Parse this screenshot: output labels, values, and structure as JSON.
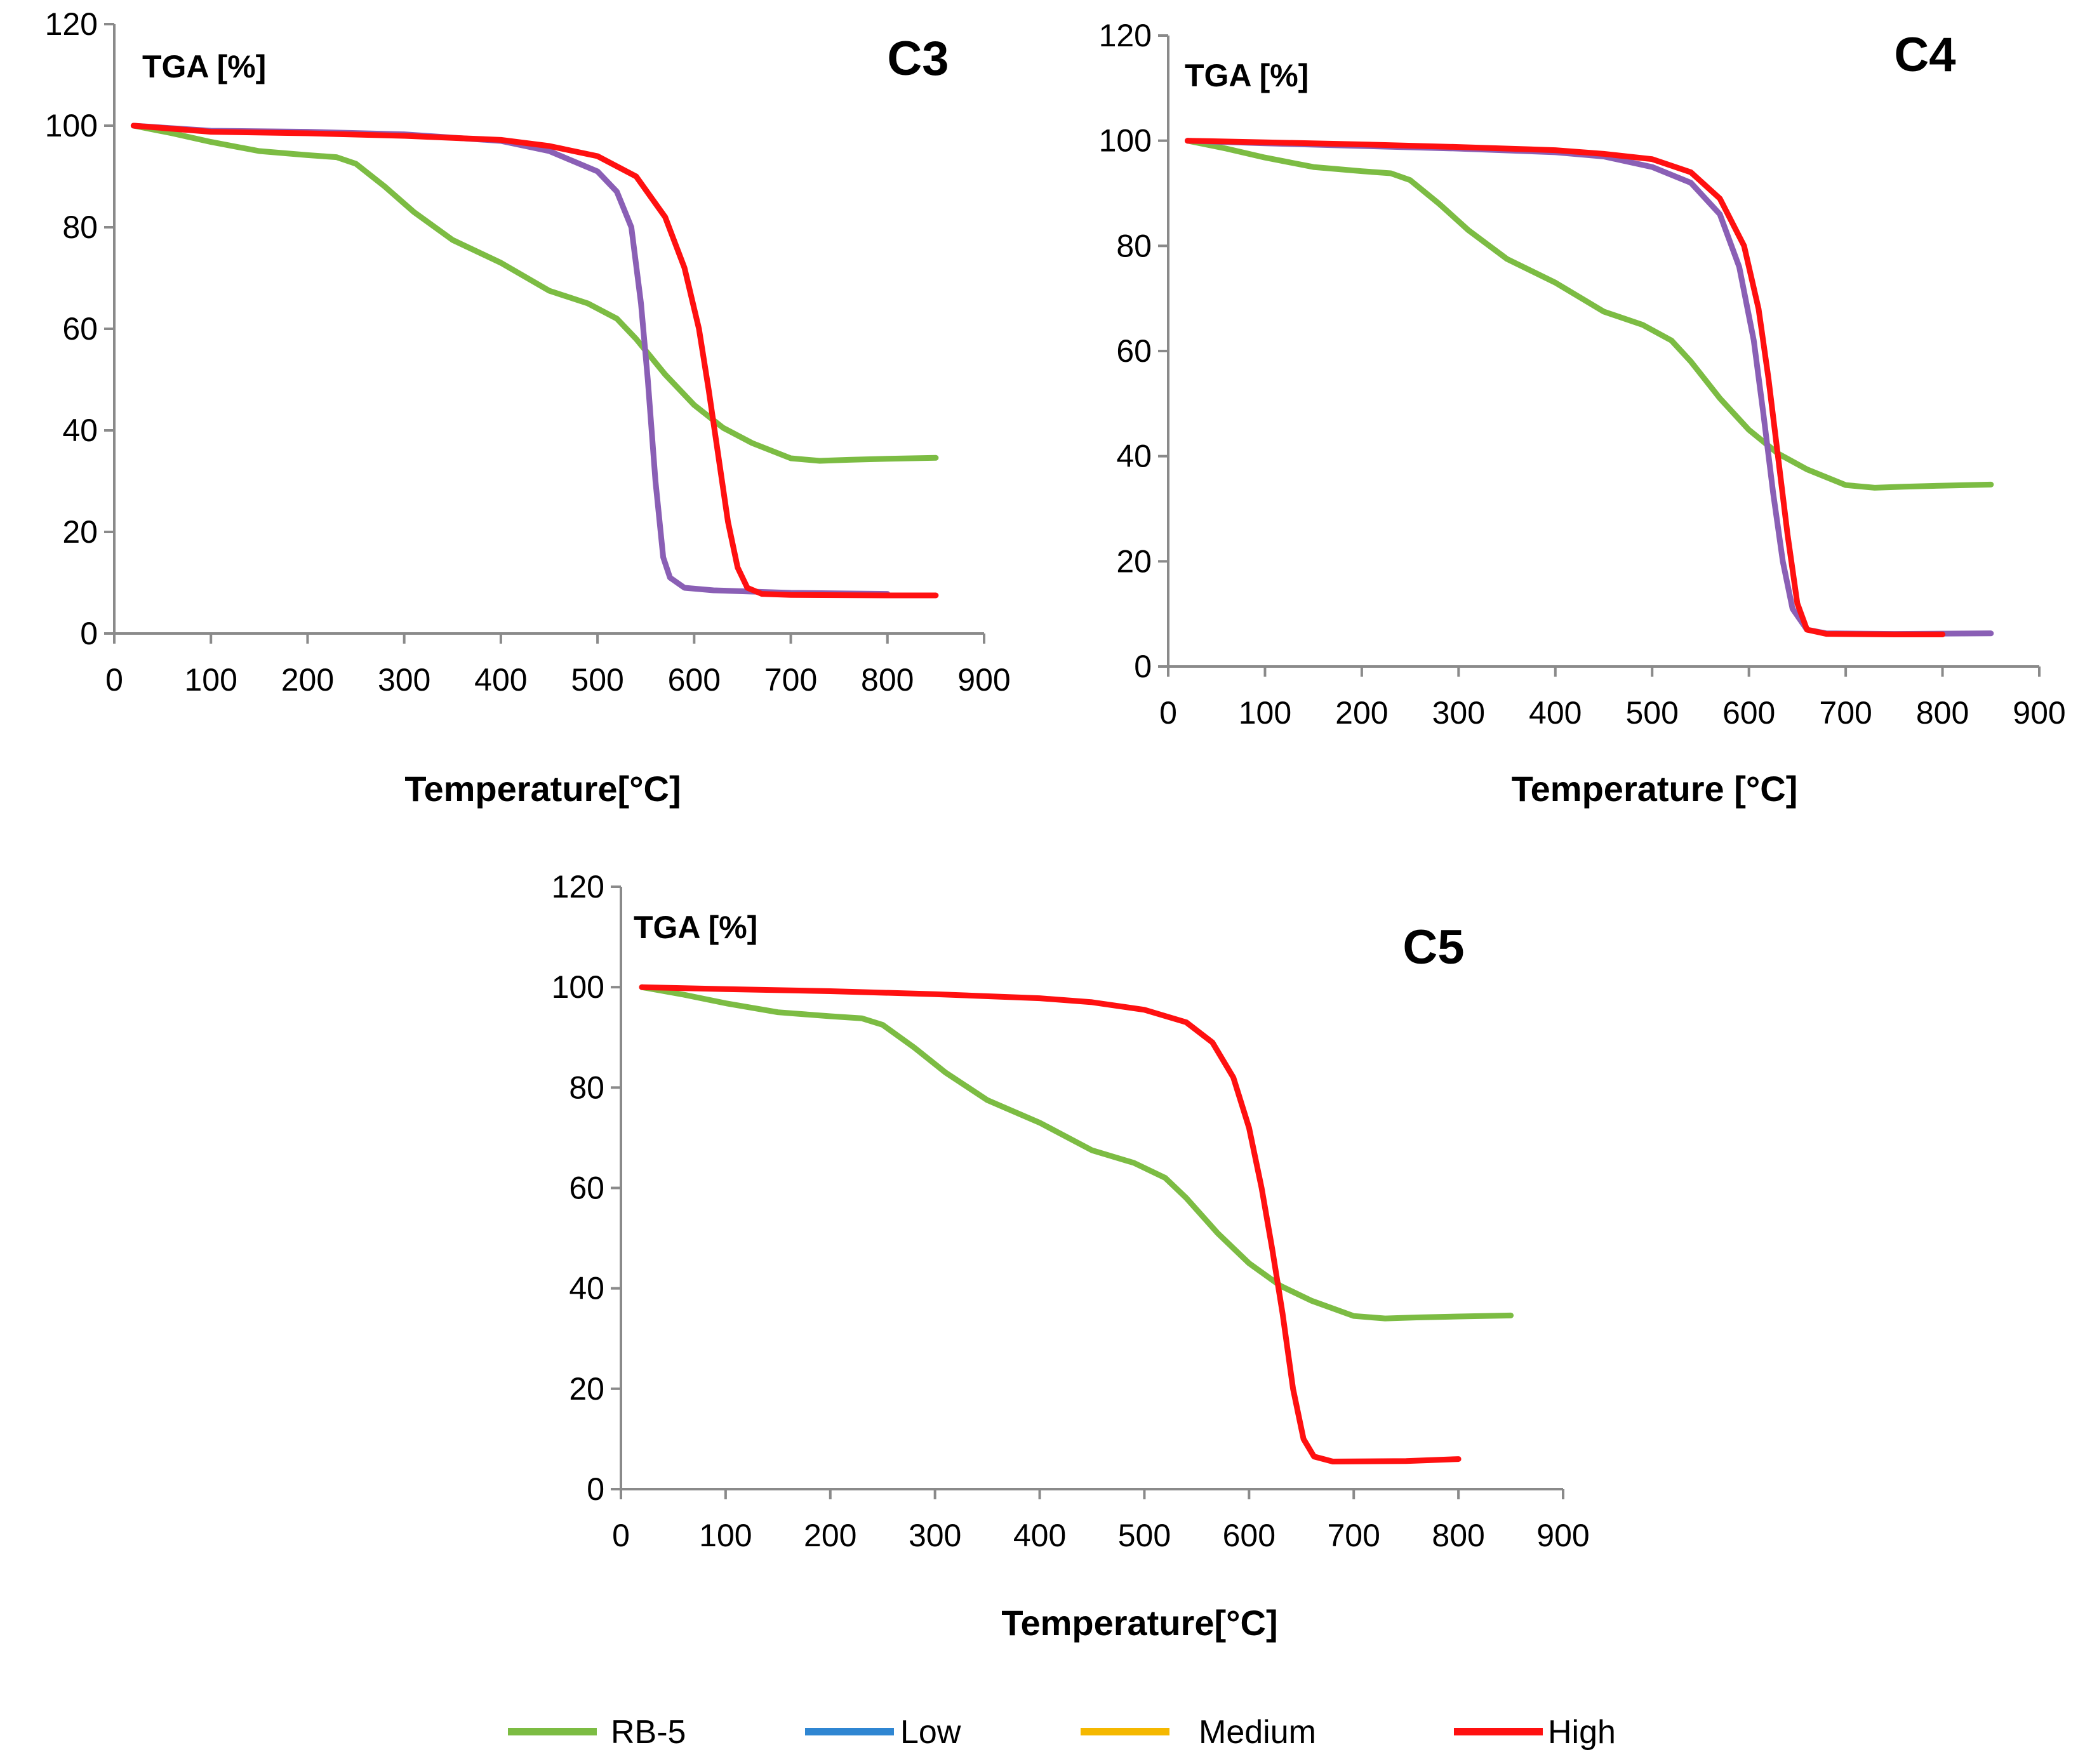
{
  "colors": {
    "RB-5": "#7cbc43",
    "Low": "#2f86d2",
    "Medium": "#f5b800",
    "High": "#ff1010",
    "purple": "#8a5fb5"
  },
  "legend": {
    "items": [
      {
        "label": "RB-5",
        "color": "#7cbc43"
      },
      {
        "label": "Low",
        "color": "#2f86d2"
      },
      {
        "label": "Medium",
        "color": "#f5b800"
      },
      {
        "label": "High",
        "color": "#ff1010"
      }
    ]
  },
  "chart_data": [
    {
      "type": "line",
      "title": "C3",
      "ylabel": "TGA [%]",
      "xlabel": "Temperature[°C]",
      "xlim": [
        0,
        900
      ],
      "ylim": [
        0,
        120
      ],
      "xticks": [
        0,
        100,
        200,
        300,
        400,
        500,
        600,
        700,
        800,
        900
      ],
      "yticks": [
        0,
        20,
        40,
        60,
        80,
        100,
        120
      ],
      "series": [
        {
          "name": "RB-5",
          "color": "#7cbc43",
          "points": [
            [
              20,
              100
            ],
            [
              60,
              98.5
            ],
            [
              100,
              96.8
            ],
            [
              150,
              95
            ],
            [
              200,
              94.2
            ],
            [
              230,
              93.8
            ],
            [
              250,
              92.5
            ],
            [
              280,
              88
            ],
            [
              310,
              83
            ],
            [
              350,
              77.5
            ],
            [
              400,
              73
            ],
            [
              450,
              67.5
            ],
            [
              490,
              65
            ],
            [
              520,
              62
            ],
            [
              540,
              58
            ],
            [
              570,
              51
            ],
            [
              600,
              45
            ],
            [
              630,
              40.5
            ],
            [
              660,
              37.5
            ],
            [
              700,
              34.5
            ],
            [
              730,
              34
            ],
            [
              760,
              34.2
            ],
            [
              800,
              34.4
            ],
            [
              850,
              34.6
            ]
          ]
        },
        {
          "name": "Medium",
          "color": "#8a5fb5",
          "points": [
            [
              20,
              100
            ],
            [
              100,
              99
            ],
            [
              200,
              98.8
            ],
            [
              300,
              98.3
            ],
            [
              400,
              97
            ],
            [
              450,
              95
            ],
            [
              500,
              91
            ],
            [
              520,
              87
            ],
            [
              535,
              80
            ],
            [
              545,
              65
            ],
            [
              552,
              50
            ],
            [
              560,
              30
            ],
            [
              568,
              15
            ],
            [
              575,
              11
            ],
            [
              590,
              9
            ],
            [
              620,
              8.5
            ],
            [
              700,
              8
            ],
            [
              800,
              7.8
            ]
          ]
        },
        {
          "name": "High",
          "color": "#ff1010",
          "points": [
            [
              20,
              100
            ],
            [
              100,
              98.8
            ],
            [
              200,
              98.5
            ],
            [
              300,
              98
            ],
            [
              400,
              97.2
            ],
            [
              450,
              96
            ],
            [
              500,
              94
            ],
            [
              540,
              90
            ],
            [
              570,
              82
            ],
            [
              590,
              72
            ],
            [
              605,
              60
            ],
            [
              615,
              48
            ],
            [
              625,
              35
            ],
            [
              635,
              22
            ],
            [
              645,
              13
            ],
            [
              655,
              9
            ],
            [
              670,
              7.8
            ],
            [
              700,
              7.6
            ],
            [
              800,
              7.5
            ],
            [
              850,
              7.5
            ]
          ]
        }
      ]
    },
    {
      "type": "line",
      "title": "C4",
      "ylabel": "TGA [%]",
      "xlabel": "Temperature [°C]",
      "xlim": [
        0,
        900
      ],
      "ylim": [
        0,
        120
      ],
      "xticks": [
        0,
        100,
        200,
        300,
        400,
        500,
        600,
        700,
        800,
        900
      ],
      "yticks": [
        0,
        20,
        40,
        60,
        80,
        100,
        120
      ],
      "series": [
        {
          "name": "RB-5",
          "color": "#7cbc43",
          "points": [
            [
              20,
              100
            ],
            [
              60,
              98.5
            ],
            [
              100,
              96.8
            ],
            [
              150,
              95
            ],
            [
              200,
              94.2
            ],
            [
              230,
              93.8
            ],
            [
              250,
              92.5
            ],
            [
              280,
              88
            ],
            [
              310,
              83
            ],
            [
              350,
              77.5
            ],
            [
              400,
              73
            ],
            [
              450,
              67.5
            ],
            [
              490,
              65
            ],
            [
              520,
              62
            ],
            [
              540,
              58
            ],
            [
              570,
              51
            ],
            [
              600,
              45
            ],
            [
              630,
              40.5
            ],
            [
              660,
              37.5
            ],
            [
              700,
              34.5
            ],
            [
              730,
              34
            ],
            [
              760,
              34.2
            ],
            [
              800,
              34.4
            ],
            [
              850,
              34.6
            ]
          ]
        },
        {
          "name": "Medium",
          "color": "#8a5fb5",
          "points": [
            [
              20,
              100
            ],
            [
              100,
              99.5
            ],
            [
              200,
              99
            ],
            [
              300,
              98.5
            ],
            [
              400,
              97.8
            ],
            [
              450,
              97
            ],
            [
              500,
              95
            ],
            [
              540,
              92
            ],
            [
              570,
              86
            ],
            [
              590,
              76
            ],
            [
              605,
              62
            ],
            [
              615,
              48
            ],
            [
              625,
              33
            ],
            [
              635,
              20
            ],
            [
              645,
              11
            ],
            [
              660,
              7
            ],
            [
              680,
              6.3
            ],
            [
              750,
              6.2
            ],
            [
              850,
              6.3
            ]
          ]
        },
        {
          "name": "High",
          "color": "#ff1010",
          "points": [
            [
              20,
              100
            ],
            [
              100,
              99.7
            ],
            [
              200,
              99.3
            ],
            [
              300,
              98.8
            ],
            [
              400,
              98.2
            ],
            [
              450,
              97.5
            ],
            [
              500,
              96.5
            ],
            [
              540,
              94
            ],
            [
              570,
              89
            ],
            [
              595,
              80
            ],
            [
              610,
              68
            ],
            [
              620,
              55
            ],
            [
              630,
              40
            ],
            [
              640,
              25
            ],
            [
              650,
              12
            ],
            [
              660,
              7
            ],
            [
              680,
              6.2
            ],
            [
              750,
              6.1
            ],
            [
              800,
              6.1
            ]
          ]
        }
      ]
    },
    {
      "type": "line",
      "title": "C5",
      "ylabel": "TGA [%]",
      "xlabel": "Temperature[°C]",
      "xlim": [
        0,
        900
      ],
      "ylim": [
        0,
        120
      ],
      "xticks": [
        0,
        100,
        200,
        300,
        400,
        500,
        600,
        700,
        800,
        900
      ],
      "yticks": [
        0,
        20,
        40,
        60,
        80,
        100,
        120
      ],
      "series": [
        {
          "name": "RB-5",
          "color": "#7cbc43",
          "points": [
            [
              20,
              100
            ],
            [
              60,
              98.5
            ],
            [
              100,
              96.8
            ],
            [
              150,
              95
            ],
            [
              200,
              94.2
            ],
            [
              230,
              93.8
            ],
            [
              250,
              92.5
            ],
            [
              280,
              88
            ],
            [
              310,
              83
            ],
            [
              350,
              77.5
            ],
            [
              400,
              73
            ],
            [
              450,
              67.5
            ],
            [
              490,
              65
            ],
            [
              520,
              62
            ],
            [
              540,
              58
            ],
            [
              570,
              51
            ],
            [
              600,
              45
            ],
            [
              630,
              40.5
            ],
            [
              660,
              37.5
            ],
            [
              700,
              34.5
            ],
            [
              730,
              34
            ],
            [
              760,
              34.2
            ],
            [
              800,
              34.4
            ],
            [
              850,
              34.6
            ]
          ]
        },
        {
          "name": "High",
          "color": "#ff1010",
          "points": [
            [
              20,
              100
            ],
            [
              100,
              99.6
            ],
            [
              200,
              99.2
            ],
            [
              300,
              98.6
            ],
            [
              400,
              97.8
            ],
            [
              450,
              97
            ],
            [
              500,
              95.5
            ],
            [
              540,
              93
            ],
            [
              565,
              89
            ],
            [
              585,
              82
            ],
            [
              600,
              72
            ],
            [
              612,
              60
            ],
            [
              622,
              48
            ],
            [
              632,
              35
            ],
            [
              642,
              20
            ],
            [
              652,
              10
            ],
            [
              662,
              6.5
            ],
            [
              680,
              5.5
            ],
            [
              750,
              5.6
            ],
            [
              800,
              6
            ]
          ]
        }
      ]
    }
  ]
}
